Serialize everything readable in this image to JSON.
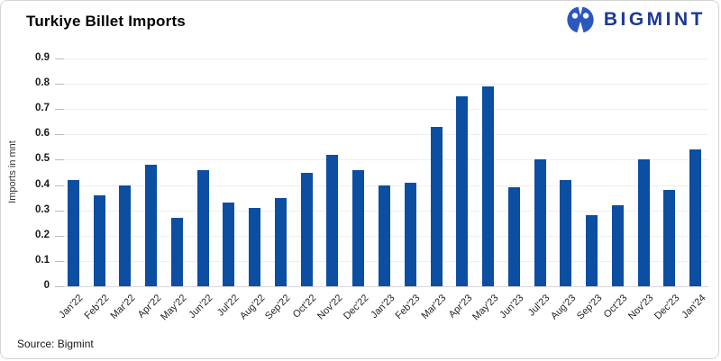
{
  "header": {
    "title": "Turkiye Billet Imports",
    "logo_text": "BIGMINT"
  },
  "colors": {
    "bar": "#0b4ea2",
    "logo_icon": "#2a57c0",
    "logo_text": "#1b3a94",
    "gridline": "#eeeeee",
    "baseline": "#d8d8d8"
  },
  "chart_data": {
    "type": "bar",
    "title": "Turkiye Billet Imports",
    "categories": [
      "Jan'22",
      "Feb'22",
      "Mar'22",
      "Apr'22",
      "May'22",
      "Jun'22",
      "Jul'22",
      "Aug'22",
      "Sep'22",
      "Oct'22",
      "Nov'22",
      "Dec'22",
      "Jan'23",
      "Feb'23",
      "Mar'23",
      "Apr'23",
      "May'23",
      "Jun'23",
      "Jul'23",
      "Aug'23",
      "Sep'23",
      "Oct'23",
      "Nov'23",
      "Dec'23",
      "Jan'24"
    ],
    "values": [
      0.42,
      0.36,
      0.4,
      0.48,
      0.27,
      0.46,
      0.33,
      0.31,
      0.35,
      0.45,
      0.52,
      0.46,
      0.4,
      0.41,
      0.63,
      0.75,
      0.79,
      0.39,
      0.5,
      0.42,
      0.28,
      0.32,
      0.5,
      0.38,
      0.54
    ],
    "xlabel": "",
    "ylabel": "Imports in mnt",
    "ylim": [
      0,
      0.9
    ],
    "ytick_step": 0.1,
    "yticks": [
      "0",
      "0.1",
      "0.2",
      "0.3",
      "0.4",
      "0.5",
      "0.6",
      "0.7",
      "0.8",
      "0.9"
    ],
    "grid": "horizontal",
    "legend": "none",
    "bar_color": "#0b4ea2"
  },
  "footer": {
    "source": "Source: Bigmint"
  }
}
